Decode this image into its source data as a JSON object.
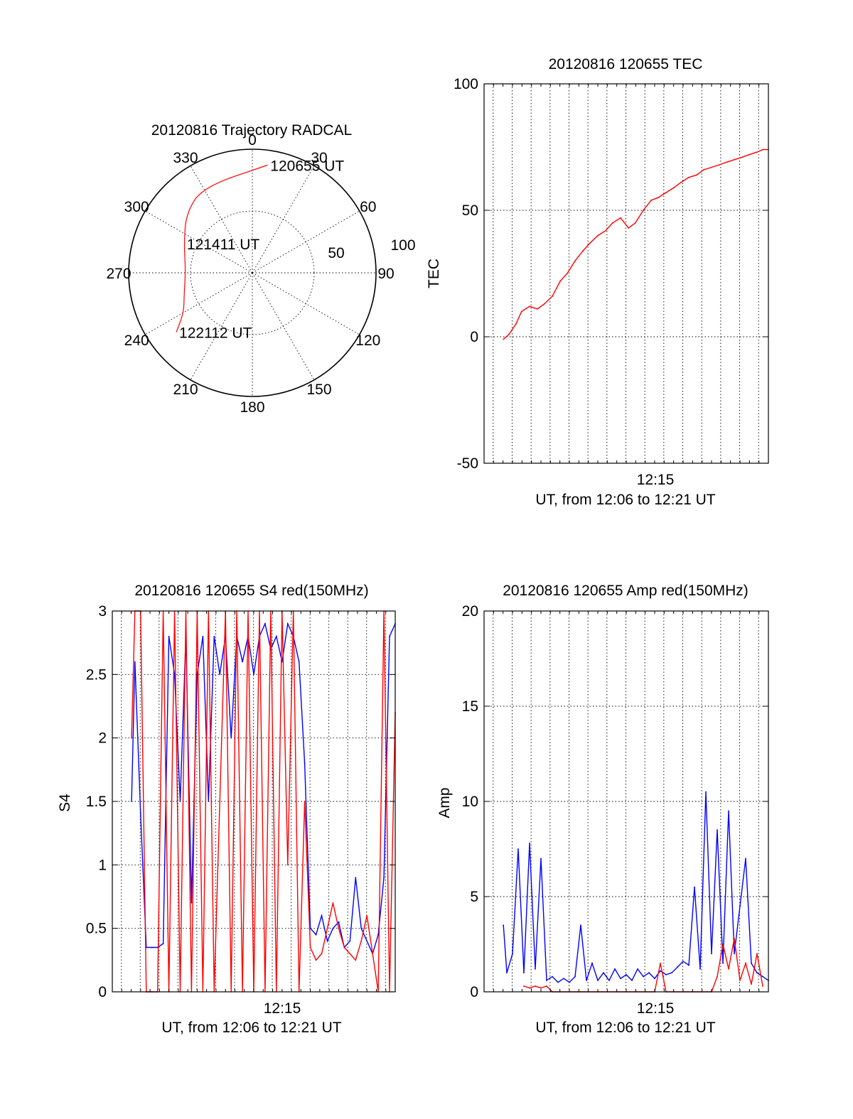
{
  "colors": {
    "red": "#ff0000",
    "blue": "#0000ff",
    "axis": "#000000"
  },
  "chart_data": [
    {
      "id": "trajectory",
      "type": "polar",
      "title": "20120816 Trajectory RADCAL",
      "azimuth_labels": [
        "0",
        "30",
        "60",
        "90",
        "120",
        "150",
        "180",
        "210",
        "240",
        "270",
        "300",
        "330"
      ],
      "elevation_labels": [
        "50",
        "100"
      ],
      "rings": [
        50,
        100
      ],
      "track_points": [
        {
          "az": 8,
          "r": 88,
          "label": "120655 UT"
        },
        {
          "az": 330,
          "r": 80
        },
        {
          "az": 312,
          "r": 72
        },
        {
          "az": 293,
          "r": 60,
          "label": "121411 UT"
        },
        {
          "az": 272,
          "r": 54
        },
        {
          "az": 252,
          "r": 58
        },
        {
          "az": 240,
          "r": 64
        },
        {
          "az": 232,
          "r": 78,
          "label": "122112 UT"
        }
      ],
      "track_color": "#ff0000"
    },
    {
      "id": "tec",
      "type": "line",
      "title": "20120816 120655 TEC",
      "xlabel": "UT, from 12:06 to 12:21 UT",
      "ylabel": "TEC",
      "x_tick_label": "12:15",
      "xlim": [
        12.1,
        12.35
      ],
      "ylim": [
        -50,
        100
      ],
      "yticks": [
        -50,
        0,
        50,
        100
      ],
      "grid": true,
      "series": [
        {
          "color": "#ff0000",
          "x": [
            12.117,
            12.122,
            12.128,
            12.133,
            12.14,
            12.147,
            12.153,
            12.16,
            12.167,
            12.173,
            12.18,
            12.187,
            12.193,
            12.2,
            12.207,
            12.213,
            12.22,
            12.227,
            12.233,
            12.24,
            12.247,
            12.253,
            12.26,
            12.267,
            12.273,
            12.28,
            12.287,
            12.293,
            12.3,
            12.307,
            12.313,
            12.32,
            12.327,
            12.333,
            12.34,
            12.345,
            12.35
          ],
          "y": [
            -1,
            1,
            5,
            10,
            12,
            11,
            13,
            16,
            22,
            25,
            30,
            34,
            37,
            40,
            42,
            45,
            47,
            43,
            45,
            50,
            54,
            55,
            57,
            59,
            61,
            63,
            64,
            66,
            67,
            68,
            69,
            70,
            71,
            72,
            73,
            74,
            74
          ]
        }
      ]
    },
    {
      "id": "s4",
      "type": "line",
      "title": "20120816 120655 S4 red(150MHz)",
      "xlabel": "UT, from 12:06 to 12:21 UT",
      "ylabel": "S4",
      "x_tick_label": "12:15",
      "xlim": [
        12.1,
        12.35
      ],
      "ylim": [
        0,
        3
      ],
      "yticks": [
        0,
        0.5,
        1,
        1.5,
        2,
        2.5,
        3
      ],
      "ytick_labels": [
        "0",
        "0.5",
        "1",
        "1.5",
        "2",
        "2.5",
        "3"
      ],
      "grid": true,
      "series": [
        {
          "name_hidden": true,
          "color": "#0000ff",
          "x": [
            12.117,
            12.12,
            12.125,
            12.13,
            12.135,
            12.14,
            12.145,
            12.15,
            12.155,
            12.16,
            12.165,
            12.17,
            12.175,
            12.18,
            12.185,
            12.19,
            12.195,
            12.2,
            12.205,
            12.21,
            12.215,
            12.22,
            12.225,
            12.23,
            12.235,
            12.24,
            12.245,
            12.25,
            12.255,
            12.26,
            12.265,
            12.27,
            12.275,
            12.28,
            12.285,
            12.29,
            12.295,
            12.3,
            12.305,
            12.31,
            12.315,
            12.32,
            12.325,
            12.33,
            12.335,
            12.34,
            12.345,
            12.35
          ],
          "y": [
            1.5,
            2.6,
            1.4,
            0.35,
            0.35,
            0.35,
            0.38,
            2.8,
            2.5,
            1.5,
            2.8,
            0.7,
            2.5,
            2.8,
            1.5,
            2.8,
            2.5,
            2.8,
            2.0,
            2.8,
            2.6,
            2.8,
            2.5,
            2.8,
            2.9,
            2.7,
            2.8,
            2.6,
            2.9,
            2.8,
            2.6,
            1.8,
            0.5,
            0.45,
            0.6,
            0.4,
            0.5,
            0.55,
            0.35,
            0.4,
            0.9,
            0.5,
            0.4,
            0.3,
            0.45,
            0.9,
            2.8,
            2.9
          ]
        },
        {
          "name_hidden": true,
          "color": "#ff0000",
          "x": [
            12.117,
            12.12,
            12.125,
            12.13,
            12.135,
            12.14,
            12.145,
            12.15,
            12.155,
            12.16,
            12.165,
            12.17,
            12.175,
            12.18,
            12.185,
            12.19,
            12.195,
            12.2,
            12.205,
            12.21,
            12.215,
            12.22,
            12.225,
            12.23,
            12.235,
            12.24,
            12.245,
            12.25,
            12.255,
            12.26,
            12.265,
            12.27,
            12.275,
            12.28,
            12.285,
            12.29,
            12.295,
            12.3,
            12.305,
            12.31,
            12.315,
            12.32,
            12.325,
            12.33,
            12.335,
            12.34,
            12.345,
            12.35
          ],
          "y": [
            2.0,
            3.0,
            3.0,
            0.0,
            0.0,
            0.0,
            3.0,
            0.0,
            3.0,
            0.0,
            3.0,
            0.0,
            3.0,
            0.0,
            3.0,
            0.0,
            1.5,
            3.0,
            0.0,
            3.0,
            0.0,
            3.0,
            0.0,
            3.0,
            0.0,
            3.0,
            0.0,
            3.0,
            1.0,
            3.0,
            0.0,
            1.5,
            0.35,
            0.25,
            0.3,
            0.5,
            0.7,
            0.5,
            0.35,
            0.3,
            0.25,
            0.4,
            0.6,
            0.3,
            0.0,
            3.0,
            0.0,
            2.2
          ]
        }
      ]
    },
    {
      "id": "amp",
      "type": "line",
      "title": "20120816 120655 Amp red(150MHz)",
      "xlabel": "UT, from 12:06 to 12:21 UT",
      "ylabel": "Amp",
      "x_tick_label": "12:15",
      "xlim": [
        12.1,
        12.35
      ],
      "ylim": [
        0,
        20
      ],
      "yticks": [
        0,
        5,
        10,
        15,
        20
      ],
      "grid": true,
      "series": [
        {
          "name_hidden": true,
          "color": "#0000ff",
          "x": [
            12.117,
            12.12,
            12.125,
            12.13,
            12.135,
            12.14,
            12.145,
            12.15,
            12.155,
            12.16,
            12.165,
            12.17,
            12.175,
            12.18,
            12.185,
            12.19,
            12.195,
            12.2,
            12.205,
            12.21,
            12.215,
            12.22,
            12.225,
            12.23,
            12.235,
            12.24,
            12.245,
            12.25,
            12.255,
            12.26,
            12.265,
            12.27,
            12.275,
            12.28,
            12.285,
            12.29,
            12.295,
            12.3,
            12.305,
            12.31,
            12.315,
            12.32,
            12.325,
            12.33,
            12.335,
            12.34,
            12.345,
            12.35
          ],
          "y": [
            3.5,
            1.0,
            2.0,
            7.5,
            1.0,
            7.8,
            1.2,
            7.0,
            0.6,
            0.8,
            0.5,
            0.7,
            0.5,
            0.8,
            3.5,
            0.6,
            1.5,
            0.6,
            1.0,
            0.6,
            1.2,
            0.7,
            0.9,
            0.6,
            1.2,
            0.8,
            1.0,
            0.7,
            1.1,
            0.9,
            1.0,
            1.3,
            1.6,
            1.4,
            5.5,
            1.2,
            10.5,
            2.0,
            8.5,
            1.5,
            9.5,
            2.0,
            4.5,
            7.0,
            1.5,
            1.0,
            0.8,
            0.6
          ]
        },
        {
          "name_hidden": true,
          "color": "#ff0000",
          "x": [
            12.135,
            12.14,
            12.145,
            12.15,
            12.155,
            12.16,
            12.2,
            12.25,
            12.255,
            12.26,
            12.3,
            12.305,
            12.31,
            12.315,
            12.32,
            12.325,
            12.33,
            12.335,
            12.34,
            12.345
          ],
          "y": [
            0.3,
            0.2,
            0.3,
            0.2,
            0.3,
            0.0,
            0.0,
            0.0,
            1.5,
            0.0,
            0.0,
            0.8,
            2.5,
            1.2,
            2.8,
            0.6,
            1.5,
            0.4,
            2.0,
            0.3
          ]
        }
      ]
    }
  ]
}
